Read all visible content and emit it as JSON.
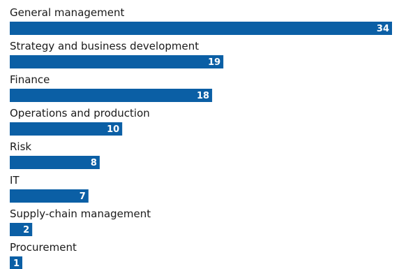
{
  "chart_data": {
    "type": "bar",
    "orientation": "horizontal",
    "categories": [
      "General management",
      "Strategy and business development",
      "Finance",
      "Operations and production",
      "Risk",
      "IT",
      "Supply-chain management",
      "Procurement"
    ],
    "values": [
      34,
      19,
      18,
      10,
      8,
      7,
      2,
      1
    ],
    "data_labels": [
      "34",
      "19",
      "18",
      "10",
      "8",
      "7",
      "2",
      "1"
    ],
    "xlim": [
      0,
      34
    ],
    "grid": false,
    "legend": "none",
    "colors": {
      "bar": "#0b5fa5",
      "value_text": "#ffffff",
      "label_text": "#1a1a1a"
    }
  }
}
